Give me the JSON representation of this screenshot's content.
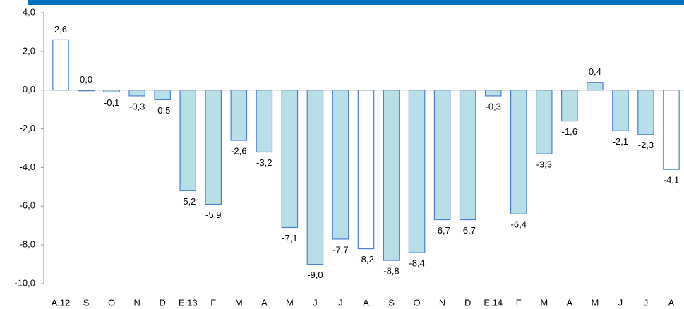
{
  "chart_data": {
    "type": "bar",
    "categories": [
      "A.12",
      "S",
      "O",
      "N",
      "D",
      "E.13",
      "F",
      "M",
      "A",
      "M",
      "J",
      "J",
      "A",
      "S",
      "O",
      "N",
      "D",
      "E.14",
      "F",
      "M",
      "A",
      "M",
      "J",
      "J",
      "A"
    ],
    "values": [
      2.6,
      0.0,
      -0.1,
      -0.3,
      -0.5,
      -5.2,
      -5.9,
      -2.6,
      -3.2,
      -7.1,
      -9.0,
      -7.7,
      -8.2,
      -8.8,
      -8.4,
      -6.7,
      -6.7,
      -0.3,
      -6.4,
      -3.3,
      -1.6,
      0.4,
      -2.1,
      -2.3,
      -4.1
    ],
    "value_labels": [
      "2,6",
      "0,0",
      "-0,1",
      "-0,3",
      "-0,5",
      "-5,2",
      "-5,9",
      "-2,6",
      "-3,2",
      "-7,1",
      "-9,0",
      "-7,7",
      "-8,2",
      "-8,8",
      "-8,4",
      "-6,7",
      "-6,7",
      "-0,3",
      "-6,4",
      "-3,3",
      "-1,6",
      "0,4",
      "-2,1",
      "-2,3",
      "-4,1"
    ],
    "colors": [
      "#ffffff",
      "#b7dfe8",
      "#b7dfe8",
      "#b7dfe8",
      "#b7dfe8",
      "#b7dfe8",
      "#b7dfe8",
      "#b7dfe8",
      "#b7dfe8",
      "#b7dfe8",
      "#b7dfe8",
      "#b7dfe8",
      "#ffffff",
      "#b7dfe8",
      "#b7dfe8",
      "#b7dfe8",
      "#b7dfe8",
      "#b7dfe8",
      "#b7dfe8",
      "#b7dfe8",
      "#b7dfe8",
      "#b7dfe8",
      "#b7dfe8",
      "#b7dfe8",
      "#ffffff"
    ],
    "edge_color": "#4a7fd4",
    "ylim": [
      -10,
      4
    ],
    "yticks": [
      {
        "value": -10,
        "label": "-10,0"
      },
      {
        "value": -8,
        "label": "-8,0"
      },
      {
        "value": -6,
        "label": "-6,0"
      },
      {
        "value": -4,
        "label": "-4,0"
      },
      {
        "value": -2,
        "label": "-2,0"
      },
      {
        "value": 0,
        "label": "0,0"
      },
      {
        "value": 2,
        "label": "2,0"
      },
      {
        "value": 4,
        "label": "4,0"
      }
    ],
    "grid": false
  }
}
